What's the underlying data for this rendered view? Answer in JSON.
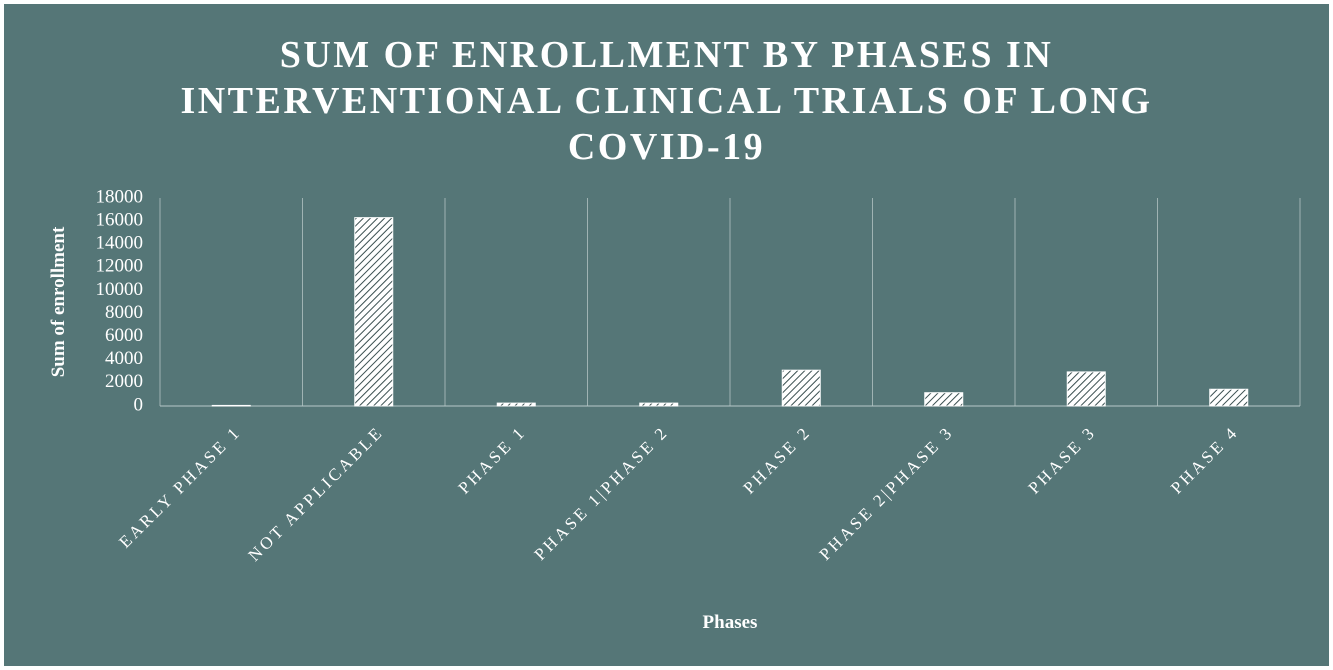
{
  "chart_data": {
    "type": "bar",
    "title": "SUM OF ENROLLMENT BY PHASES IN INTERVENTIONAL CLINICAL TRIALS OF LONG COVID-19",
    "xlabel": "Phases",
    "ylabel": "Sum of enrollment",
    "categories": [
      "EARLY PHASE 1",
      "NOT APPLICABLE",
      "PHASE 1",
      "PHASE 1|PHASE 2",
      "PHASE 2",
      "PHASE 2|PHASE 3",
      "PHASE 3",
      "PHASE 4"
    ],
    "values": [
      50,
      16300,
      250,
      250,
      3100,
      1150,
      2950,
      1450
    ],
    "ylim": [
      0,
      18000
    ],
    "yticks": [
      0,
      2000,
      4000,
      6000,
      8000,
      10000,
      12000,
      14000,
      16000,
      18000
    ],
    "grid": true
  }
}
